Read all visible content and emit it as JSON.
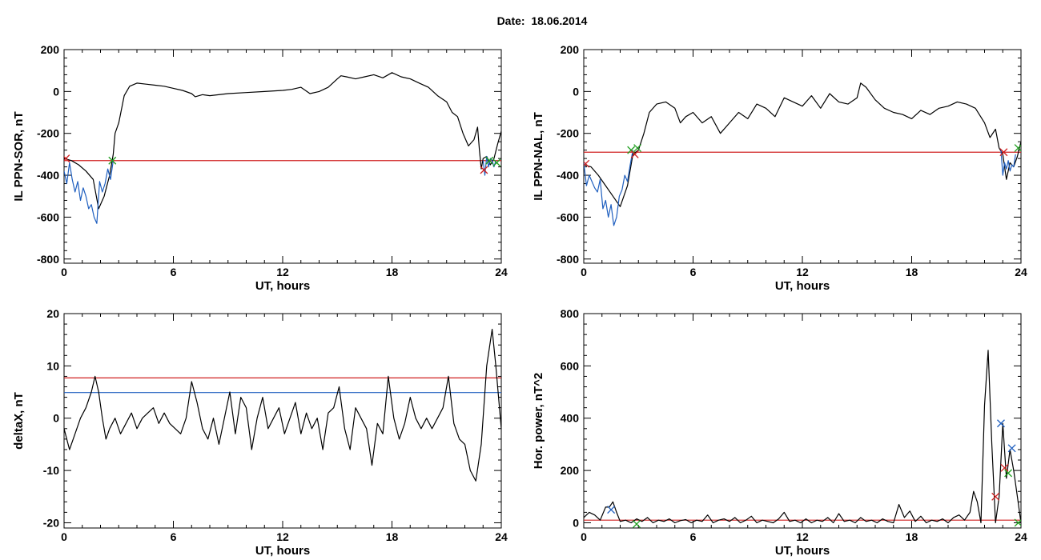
{
  "figure": {
    "title": "Date:  18.06.2014"
  },
  "chart_data": [
    {
      "type": "line",
      "panel": "top-left",
      "ylabel": "IL PPN-SOR, nT",
      "xlabel": "UT, hours",
      "xlim": [
        0,
        24
      ],
      "ylim": [
        -820,
        200
      ],
      "xticks": [
        "0",
        "6",
        "12",
        "18",
        "24"
      ],
      "xtick_values": [
        0,
        6,
        12,
        18,
        24
      ],
      "yticks": [
        "200",
        "0",
        "-200",
        "-400",
        "-600",
        "-800"
      ],
      "ytick_values": [
        200,
        0,
        -200,
        -400,
        -600,
        -800
      ],
      "series": [
        {
          "color": "#000000",
          "x": [
            0,
            0.4,
            0.8,
            1.2,
            1.6,
            1.9,
            2.2,
            2.5,
            2.7,
            2.8,
            3.0,
            3.3,
            3.6,
            4.0,
            4.5,
            5.0,
            5.5,
            6.0,
            6.5,
            7.0,
            7.2,
            7.6,
            8.0,
            9.0,
            10.0,
            11.0,
            12.0,
            12.5,
            13.0,
            13.5,
            14.0,
            14.5,
            15.0,
            15.2,
            15.5,
            16.0,
            16.5,
            17.0,
            17.5,
            18.0,
            18.5,
            19.0,
            19.5,
            20.0,
            20.5,
            21.0,
            21.3,
            21.6,
            21.9,
            22.2,
            22.5,
            22.7,
            22.8,
            22.9,
            23.0,
            23.2,
            23.4,
            23.6,
            23.8,
            24.0
          ],
          "y": [
            -320,
            -330,
            -350,
            -380,
            -420,
            -560,
            -500,
            -400,
            -300,
            -200,
            -150,
            -20,
            25,
            40,
            35,
            30,
            25,
            15,
            5,
            -10,
            -25,
            -15,
            -20,
            -10,
            -5,
            0,
            5,
            10,
            20,
            -10,
            0,
            20,
            60,
            75,
            70,
            60,
            70,
            80,
            65,
            90,
            70,
            60,
            40,
            20,
            -20,
            -50,
            -100,
            -120,
            -200,
            -260,
            -230,
            -170,
            -280,
            -370,
            -320,
            -310,
            -350,
            -320,
            -250,
            -190
          ]
        },
        {
          "color": "#1f5fbf",
          "x": [
            0,
            0.15,
            0.3,
            0.45,
            0.6,
            0.75,
            0.9,
            1.05,
            1.2,
            1.35,
            1.5,
            1.65,
            1.8,
            1.95,
            2.1,
            2.25,
            2.4,
            2.55,
            2.7
          ],
          "y": [
            -380,
            -440,
            -340,
            -420,
            -480,
            -430,
            -520,
            -460,
            -500,
            -560,
            -540,
            -600,
            -630,
            -430,
            -480,
            -440,
            -370,
            -420,
            -330
          ]
        },
        {
          "color": "#1f5fbf",
          "x": [
            23.0,
            23.1,
            23.2,
            23.3,
            23.4,
            23.5,
            23.6,
            23.7
          ],
          "y": [
            -330,
            -400,
            -310,
            -360,
            -320,
            -330,
            -360,
            -330
          ]
        }
      ],
      "threshold_lines": [
        {
          "color": "#d02020",
          "y": -330
        }
      ],
      "markers": [
        {
          "symbol": "x",
          "color": "#d02020",
          "x": 0.1,
          "y": -320
        },
        {
          "symbol": "x",
          "color": "#20a020",
          "x": 2.65,
          "y": -330
        },
        {
          "symbol": "x",
          "color": "#d02020",
          "x": 23.05,
          "y": -375
        },
        {
          "symbol": "x",
          "color": "#20a020",
          "x": 23.35,
          "y": -330
        },
        {
          "symbol": "x",
          "color": "#20a020",
          "x": 23.75,
          "y": -340
        }
      ]
    },
    {
      "type": "line",
      "panel": "top-right",
      "ylabel": "IL PPN-NAL, nT",
      "xlabel": "UT, hours",
      "xlim": [
        0,
        24
      ],
      "ylim": [
        -820,
        200
      ],
      "xticks": [
        "0",
        "6",
        "12",
        "18",
        "24"
      ],
      "xtick_values": [
        0,
        6,
        12,
        18,
        24
      ],
      "yticks": [
        "200",
        "0",
        "-200",
        "-400",
        "-600",
        "-800"
      ],
      "yticks_values_note": "",
      "ytick_values": [
        200,
        0,
        -200,
        -400,
        -600,
        -800
      ],
      "series": [
        {
          "color": "#000000",
          "x": [
            0,
            0.4,
            0.8,
            1.2,
            1.6,
            2.0,
            2.4,
            2.7,
            3.0,
            3.3,
            3.6,
            4.0,
            4.5,
            5.0,
            5.3,
            5.6,
            6.0,
            6.5,
            7.0,
            7.5,
            8.0,
            8.5,
            9.0,
            9.5,
            10.0,
            10.5,
            11.0,
            11.5,
            12.0,
            12.5,
            13.0,
            13.5,
            14.0,
            14.5,
            15.0,
            15.2,
            15.5,
            16.0,
            16.5,
            17.0,
            17.5,
            18.0,
            18.5,
            19.0,
            19.5,
            20.0,
            20.5,
            21.0,
            21.5,
            22.0,
            22.3,
            22.6,
            22.8,
            23.0,
            23.2,
            23.4,
            23.6,
            23.8,
            24.0
          ],
          "y": [
            -350,
            -360,
            -400,
            -450,
            -500,
            -550,
            -450,
            -300,
            -280,
            -200,
            -100,
            -60,
            -50,
            -80,
            -150,
            -120,
            -100,
            -150,
            -120,
            -200,
            -150,
            -100,
            -130,
            -60,
            -80,
            -120,
            -30,
            -50,
            -70,
            -20,
            -80,
            -10,
            -50,
            -60,
            -30,
            40,
            20,
            -40,
            -80,
            -100,
            -110,
            -130,
            -90,
            -110,
            -80,
            -70,
            -50,
            -60,
            -80,
            -150,
            -220,
            -180,
            -270,
            -300,
            -420,
            -340,
            -360,
            -310,
            -240
          ]
        },
        {
          "color": "#1f5fbf",
          "x": [
            0,
            0.15,
            0.3,
            0.45,
            0.6,
            0.75,
            0.9,
            1.05,
            1.2,
            1.35,
            1.5,
            1.65,
            1.8,
            1.95,
            2.1,
            2.25,
            2.4,
            2.55,
            2.7
          ],
          "y": [
            -340,
            -450,
            -400,
            -430,
            -460,
            -480,
            -420,
            -560,
            -520,
            -600,
            -540,
            -640,
            -600,
            -500,
            -470,
            -400,
            -430,
            -350,
            -280
          ]
        },
        {
          "color": "#1f5fbf",
          "x": [
            22.9,
            23.0,
            23.1,
            23.2,
            23.3,
            23.4,
            23.5,
            23.6,
            23.7
          ],
          "y": [
            -280,
            -400,
            -340,
            -370,
            -330,
            -380,
            -350,
            -360,
            -300
          ]
        }
      ],
      "threshold_lines": [
        {
          "color": "#d02020",
          "y": -290
        }
      ],
      "markers": [
        {
          "symbol": "x",
          "color": "#d02020",
          "x": 0.1,
          "y": -345
        },
        {
          "symbol": "x",
          "color": "#20a020",
          "x": 2.6,
          "y": -280
        },
        {
          "symbol": "x",
          "color": "#d02020",
          "x": 2.8,
          "y": -300
        },
        {
          "symbol": "x",
          "color": "#20a020",
          "x": 2.95,
          "y": -270
        },
        {
          "symbol": "x",
          "color": "#d02020",
          "x": 23.05,
          "y": -290
        },
        {
          "symbol": "x",
          "color": "#20a020",
          "x": 23.85,
          "y": -270
        }
      ]
    },
    {
      "type": "line",
      "panel": "bottom-left",
      "ylabel": "deltaX, nT",
      "xlabel": "UT, hours",
      "xlim": [
        0,
        24
      ],
      "ylim": [
        -21,
        20
      ],
      "xticks": [
        "0",
        "6",
        "12",
        "18",
        "24"
      ],
      "xtick_values": [
        0,
        6,
        12,
        18,
        24
      ],
      "yticks": [
        "20",
        "10",
        "0",
        "-10",
        "-20"
      ],
      "ytick_values": [
        20,
        10,
        0,
        -10,
        -20
      ],
      "series": [
        {
          "color": "#000000",
          "x": [
            0,
            0.3,
            0.6,
            0.9,
            1.2,
            1.5,
            1.7,
            1.9,
            2.1,
            2.3,
            2.5,
            2.8,
            3.1,
            3.4,
            3.7,
            4.0,
            4.3,
            4.6,
            4.9,
            5.2,
            5.5,
            5.8,
            6.1,
            6.4,
            6.7,
            7.0,
            7.3,
            7.6,
            7.9,
            8.2,
            8.5,
            8.8,
            9.1,
            9.4,
            9.7,
            10.0,
            10.3,
            10.6,
            10.9,
            11.2,
            11.5,
            11.8,
            12.1,
            12.4,
            12.7,
            13.0,
            13.3,
            13.6,
            13.9,
            14.2,
            14.5,
            14.8,
            15.1,
            15.4,
            15.7,
            16.0,
            16.3,
            16.6,
            16.9,
            17.2,
            17.5,
            17.8,
            18.1,
            18.4,
            18.7,
            19.0,
            19.3,
            19.6,
            19.9,
            20.2,
            20.5,
            20.8,
            21.1,
            21.4,
            21.7,
            22.0,
            22.3,
            22.6,
            22.9,
            23.2,
            23.5,
            23.7,
            24.0
          ],
          "y": [
            -2,
            -6,
            -3,
            0,
            2,
            5,
            8,
            5,
            0,
            -4,
            -2,
            0,
            -3,
            -1,
            1,
            -2,
            0,
            1,
            2,
            -1,
            1,
            -1,
            -2,
            -3,
            0,
            7,
            3,
            -2,
            -4,
            0,
            -5,
            0,
            5,
            -3,
            4,
            2,
            -6,
            0,
            4,
            -2,
            0,
            2,
            -3,
            0,
            3,
            -3,
            1,
            -2,
            0,
            -6,
            1,
            2,
            6,
            -2,
            -6,
            2,
            0,
            -2,
            -9,
            -1,
            -3,
            8,
            0,
            -4,
            -1,
            4,
            0,
            -2,
            0,
            -2,
            0,
            2,
            8,
            -1,
            -4,
            -5,
            -10,
            -12,
            -5,
            10,
            17,
            10,
            -2
          ]
        }
      ],
      "threshold_lines": [
        {
          "color": "#d02020",
          "y": 7.7
        },
        {
          "color": "#1f5fbf",
          "y": 4.9
        }
      ],
      "markers": []
    },
    {
      "type": "line",
      "panel": "bottom-right",
      "ylabel": "Hor. power, nT^2",
      "xlabel": "UT, hours",
      "xlim": [
        0,
        24
      ],
      "ylim": [
        -20,
        800
      ],
      "xticks": [
        "0",
        "6",
        "12",
        "18",
        "24"
      ],
      "xtick_values": [
        0,
        6,
        12,
        18,
        24
      ],
      "yticks": [
        "800",
        "600",
        "400",
        "200",
        "0"
      ],
      "ytick_values": [
        800,
        600,
        400,
        200,
        0
      ],
      "series": [
        {
          "color": "#000000",
          "x": [
            0,
            0.3,
            0.6,
            0.9,
            1.2,
            1.4,
            1.6,
            1.8,
            2.0,
            2.3,
            2.6,
            2.9,
            3.2,
            3.5,
            3.8,
            4.1,
            4.4,
            4.7,
            5.0,
            5.3,
            5.6,
            5.9,
            6.2,
            6.5,
            6.8,
            7.1,
            7.4,
            7.7,
            8.0,
            8.3,
            8.6,
            8.9,
            9.2,
            9.5,
            9.8,
            10.1,
            10.4,
            10.7,
            11.0,
            11.3,
            11.6,
            11.9,
            12.2,
            12.5,
            12.8,
            13.1,
            13.4,
            13.7,
            14.0,
            14.3,
            14.6,
            14.9,
            15.2,
            15.5,
            15.8,
            16.1,
            16.4,
            16.7,
            17.0,
            17.3,
            17.6,
            17.9,
            18.2,
            18.5,
            18.8,
            19.1,
            19.4,
            19.7,
            20.0,
            20.3,
            20.6,
            20.9,
            21.2,
            21.4,
            21.6,
            21.8,
            22.0,
            22.2,
            22.4,
            22.6,
            22.8,
            23.0,
            23.2,
            23.4,
            23.6,
            23.8,
            24.0
          ],
          "y": [
            20,
            40,
            30,
            10,
            60,
            60,
            80,
            40,
            5,
            10,
            0,
            15,
            5,
            20,
            0,
            10,
            5,
            15,
            0,
            8,
            12,
            0,
            10,
            5,
            30,
            0,
            10,
            15,
            5,
            20,
            0,
            10,
            25,
            0,
            10,
            5,
            0,
            15,
            40,
            5,
            10,
            0,
            15,
            0,
            10,
            5,
            20,
            0,
            35,
            5,
            10,
            0,
            20,
            5,
            10,
            0,
            15,
            5,
            0,
            70,
            20,
            45,
            5,
            25,
            0,
            10,
            5,
            15,
            0,
            20,
            30,
            10,
            40,
            120,
            80,
            0,
            450,
            660,
            300,
            0,
            100,
            380,
            170,
            280,
            200,
            100,
            0
          ]
        }
      ],
      "threshold_lines": [
        {
          "color": "#d02020",
          "y": 10
        }
      ],
      "markers": [
        {
          "symbol": "x",
          "color": "#1f5fbf",
          "x": 1.5,
          "y": 50
        },
        {
          "symbol": "x",
          "color": "#20a020",
          "x": 2.9,
          "y": -5
        },
        {
          "symbol": "x",
          "color": "#d02020",
          "x": 22.6,
          "y": 100
        },
        {
          "symbol": "x",
          "color": "#1f5fbf",
          "x": 22.9,
          "y": 380
        },
        {
          "symbol": "x",
          "color": "#d02020",
          "x": 23.1,
          "y": 210
        },
        {
          "symbol": "x",
          "color": "#20a020",
          "x": 23.3,
          "y": 190
        },
        {
          "symbol": "x",
          "color": "#1f5fbf",
          "x": 23.5,
          "y": 285
        },
        {
          "symbol": "x",
          "color": "#20a020",
          "x": 23.85,
          "y": 0
        }
      ]
    }
  ]
}
